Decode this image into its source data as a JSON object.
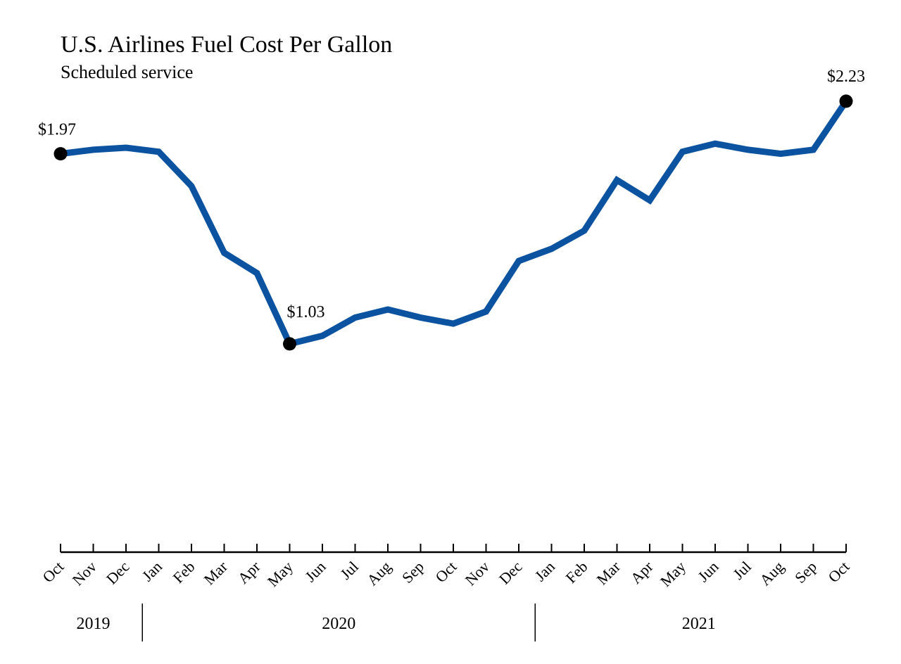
{
  "chart_data": {
    "type": "line",
    "title": "U.S. Airlines Fuel Cost Per Gallon",
    "subtitle": "Scheduled service",
    "xlabel": "",
    "ylabel": "",
    "grid": false,
    "x": [
      "2019-10",
      "2019-11",
      "2019-12",
      "2020-01",
      "2020-02",
      "2020-03",
      "2020-04",
      "2020-05",
      "2020-06",
      "2020-07",
      "2020-08",
      "2020-09",
      "2020-10",
      "2020-11",
      "2020-12",
      "2021-01",
      "2021-02",
      "2021-03",
      "2021-04",
      "2021-05",
      "2021-06",
      "2021-07",
      "2021-08",
      "2021-09",
      "2021-10"
    ],
    "tick_labels": [
      "Oct",
      "Nov",
      "Dec",
      "Jan",
      "Feb",
      "Mar",
      "Apr",
      "May",
      "Jun",
      "Jul",
      "Aug",
      "Sep",
      "Oct",
      "Nov",
      "Dec",
      "Jan",
      "Feb",
      "Mar",
      "Apr",
      "May",
      "Jun",
      "Jul",
      "Aug",
      "Sep",
      "Oct"
    ],
    "years": [
      {
        "label": "2019",
        "start": 0,
        "end": 2
      },
      {
        "label": "2020",
        "start": 3,
        "end": 14
      },
      {
        "label": "2021",
        "start": 15,
        "end": 24
      }
    ],
    "series": [
      {
        "color": "#0b52a0",
        "values": [
          1.97,
          1.99,
          2.0,
          1.98,
          1.81,
          1.48,
          1.38,
          1.03,
          1.07,
          1.16,
          1.2,
          1.16,
          1.13,
          1.19,
          1.44,
          1.5,
          1.59,
          1.84,
          1.74,
          1.98,
          2.02,
          1.99,
          1.97,
          1.99,
          2.23
        ]
      }
    ],
    "annotations": [
      {
        "index": 0,
        "label": "$1.97",
        "position": "above"
      },
      {
        "index": 7,
        "label": "$1.03",
        "position": "above-right"
      },
      {
        "index": 24,
        "label": "$2.23",
        "position": "above"
      }
    ],
    "ylim": [
      0,
      2.5
    ]
  }
}
